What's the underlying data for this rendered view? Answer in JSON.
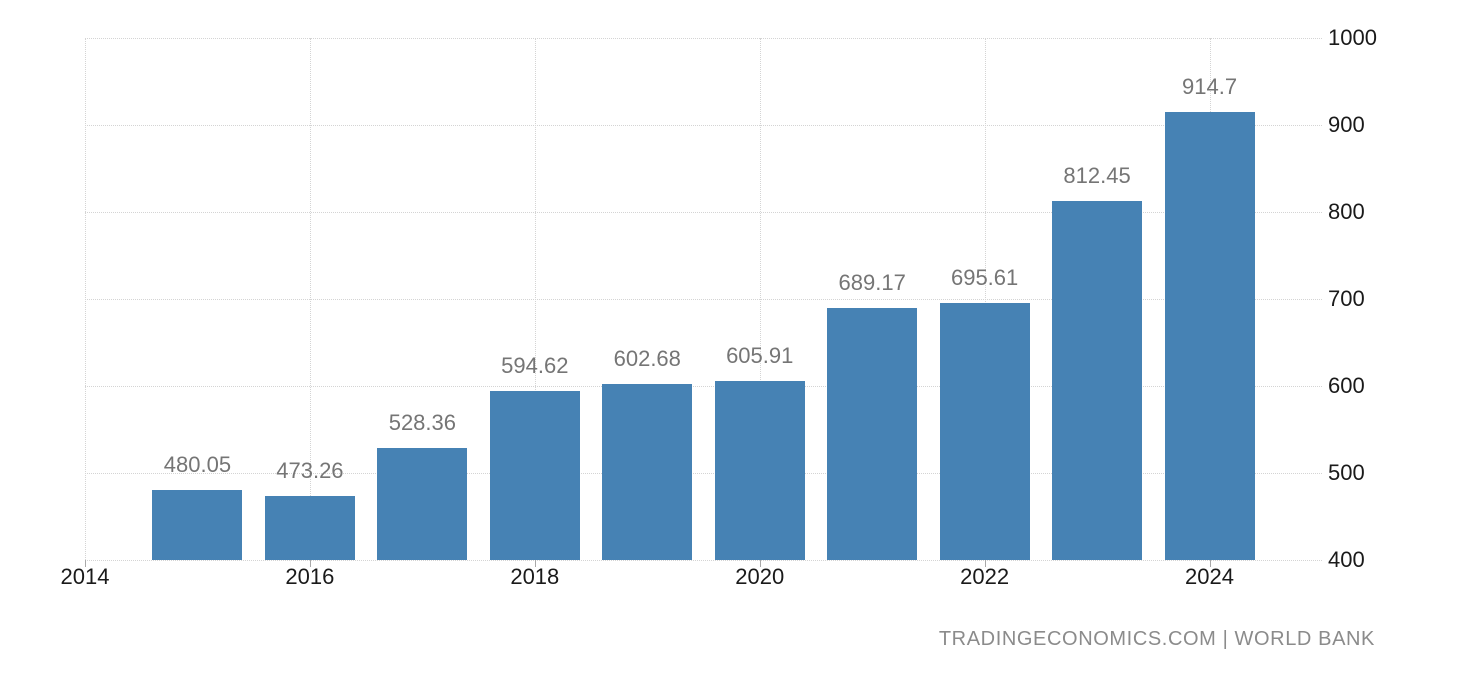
{
  "chart_data": {
    "type": "bar",
    "title": "",
    "xlabel": "",
    "ylabel": "",
    "categories": [
      2015,
      2016,
      2017,
      2018,
      2019,
      2020,
      2021,
      2022,
      2023,
      2024
    ],
    "values": [
      480.05,
      473.26,
      528.36,
      594.62,
      602.68,
      605.91,
      689.17,
      695.61,
      812.45,
      914.7
    ],
    "value_labels": [
      "480.05",
      "473.26",
      "528.36",
      "594.62",
      "602.68",
      "605.91",
      "689.17",
      "695.61",
      "812.45",
      "914.7"
    ],
    "x_ticks": [
      2014,
      2016,
      2018,
      2020,
      2022,
      2024
    ],
    "x_tick_labels": [
      "2014",
      "2016",
      "2018",
      "2020",
      "2022",
      "2024"
    ],
    "y_ticks": [
      400,
      500,
      600,
      700,
      800,
      900,
      1000
    ],
    "y_tick_labels": [
      "400",
      "500",
      "600",
      "700",
      "800",
      "900",
      "1000"
    ],
    "xlim": [
      2014,
      2025
    ],
    "ylim": [
      400,
      1000
    ],
    "grid": "dotted",
    "legend": null,
    "y_axis_side": "right",
    "bar_color": "#4682b4",
    "value_label_color": "#757575",
    "axis_text_color": "#1a1a1a",
    "grid_color": "#d4d4d4"
  },
  "attribution": {
    "text": "TRADINGECONOMICS.COM | WORLD BANK"
  }
}
